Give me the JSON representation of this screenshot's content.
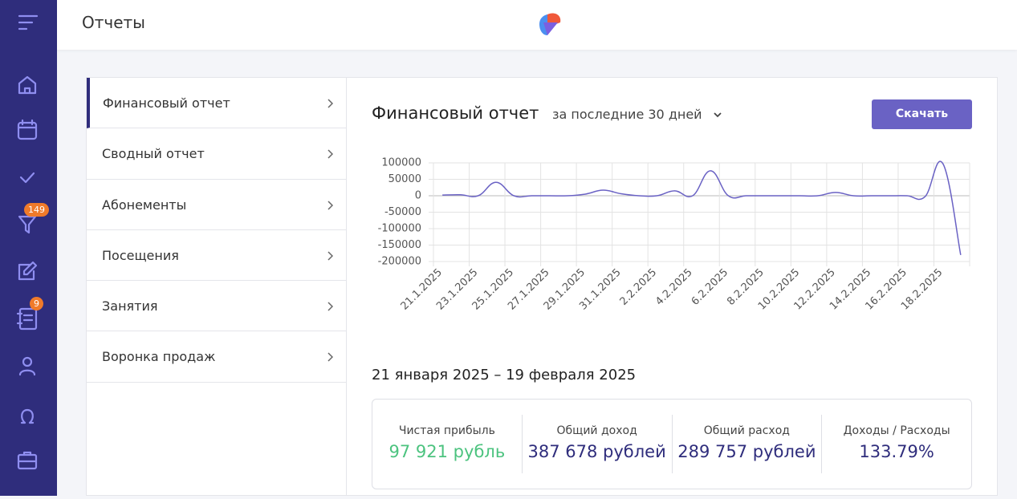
{
  "header": {
    "title": "Отчеты"
  },
  "sidebar": {
    "badges": [
      "149",
      "9"
    ]
  },
  "menu": {
    "items": [
      "Финансовый отчет",
      "Сводный отчет",
      "Абонементы",
      "Посещения",
      "Занятия",
      "Воронка продаж"
    ]
  },
  "report": {
    "title": "Финансовый отчет",
    "period": "за последние 30 дней",
    "button": "Скачать",
    "range": "21 января 2025 – 19 февраля 2025"
  },
  "chart_data": {
    "type": "line",
    "categories": [
      "21.1.2025",
      null,
      "23.1.2025",
      null,
      "25.1.2025",
      null,
      "27.1.2025",
      null,
      "29.1.2025",
      null,
      "31.1.2025",
      null,
      "2.2.2025",
      null,
      "4.2.2025",
      null,
      "6.2.2025",
      null,
      "8.2.2025",
      null,
      "10.2.2025",
      null,
      "12.2.2025",
      null,
      "14.2.2025",
      null,
      "16.2.2025",
      null,
      "18.2.2025",
      null
    ],
    "values": [
      2000,
      3000,
      0,
      41000,
      0,
      0,
      0,
      0,
      5000,
      17000,
      6000,
      0,
      0,
      15000,
      0,
      76000,
      0,
      0,
      0,
      0,
      0,
      0,
      10000,
      0,
      0,
      0,
      0,
      -3000,
      98000,
      -180000
    ],
    "color": "#6a62c4",
    "ylim": [
      -200000,
      100000
    ],
    "yticks": [
      -200000,
      -150000,
      -100000,
      -50000,
      0,
      50000,
      100000
    ],
    "grid": true
  },
  "stats": [
    {
      "label": "Чистая прибыль",
      "value": "97 921 рубль"
    },
    {
      "label": "Общий доход",
      "value": "387 678 рублей"
    },
    {
      "label": "Общий расход",
      "value": "289 757 рублей"
    },
    {
      "label": "Доходы / Расходы",
      "value": "133.79%"
    }
  ]
}
